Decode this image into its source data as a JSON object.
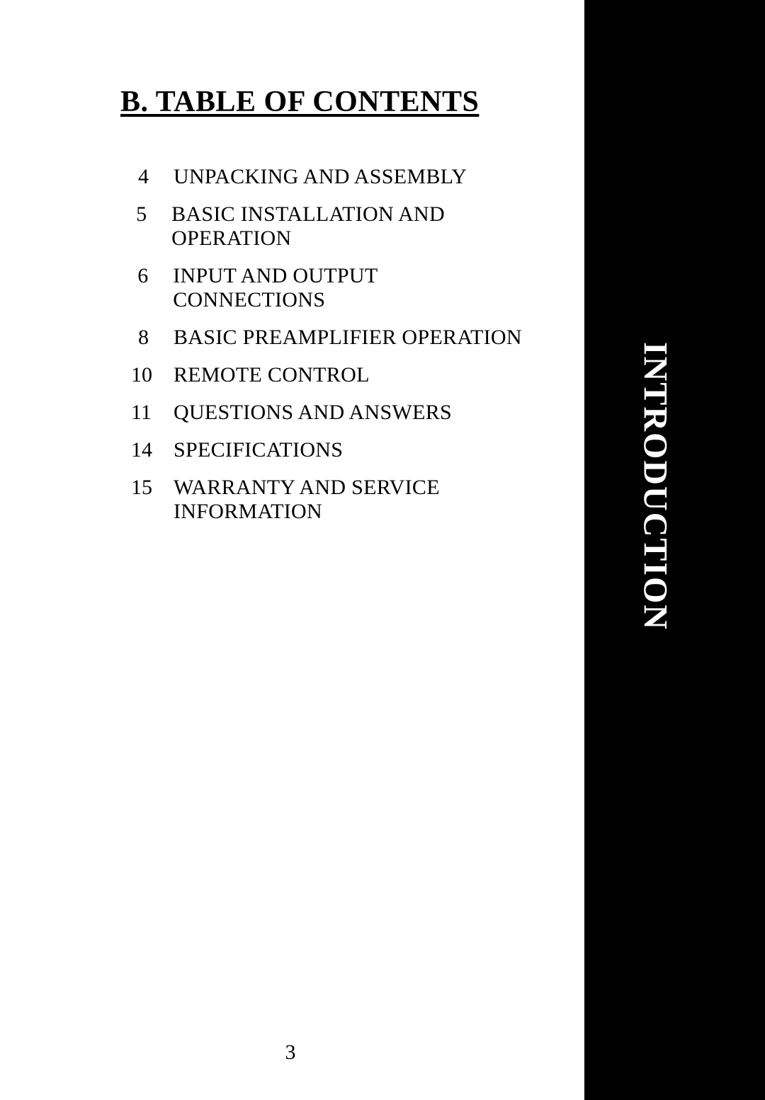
{
  "heading": "B. TABLE OF CONTENTS",
  "toc": [
    {
      "page": "4",
      "title": "UNPACKING AND ASSEMBLY"
    },
    {
      "page": "5",
      "title": "BASIC INSTALLATION AND OPERATION"
    },
    {
      "page": "6",
      "title": "INPUT AND OUTPUT CONNECTIONS"
    },
    {
      "page": "8",
      "title": "BASIC PREAMPLIFIER OPERATION"
    },
    {
      "page": "10",
      "title": "REMOTE CONTROL"
    },
    {
      "page": "11",
      "title": "QUESTIONS AND ANSWERS"
    },
    {
      "page": "14",
      "title": "SPECIFICATIONS"
    },
    {
      "page": "15",
      "title": "WARRANTY AND SERVICE INFORMATION"
    }
  ],
  "sideTab": "INTRODUCTION",
  "pageNumber": "3",
  "colors": {
    "background": "#ffffff",
    "text": "#000000",
    "tabBackground": "#000000",
    "tabText": "#ffffff"
  }
}
